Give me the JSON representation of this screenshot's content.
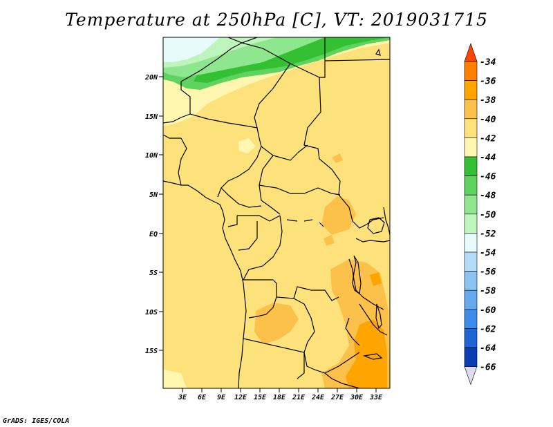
{
  "title": "Temperature at 250hPa [C], VT: 2019031715",
  "footer": "GrADS: IGES/COLA",
  "map": {
    "lat_labels": [
      "20N",
      "15N",
      "10N",
      "5N",
      "EQ",
      "5S",
      "10S",
      "15S"
    ],
    "lon_labels": [
      "3E",
      "6E",
      "9E",
      "12E",
      "15E",
      "18E",
      "21E",
      "24E",
      "27E",
      "30E",
      "33E"
    ]
  },
  "colorbar": {
    "labels": [
      "-34",
      "-36",
      "-38",
      "-40",
      "-42",
      "-44",
      "-46",
      "-48",
      "-50",
      "-52",
      "-54",
      "-56",
      "-58",
      "-60",
      "-62",
      "-64",
      "-66"
    ],
    "colors": [
      "#ff4500",
      "#ff7f00",
      "#ffa500",
      "#fbc14a",
      "#fde27c",
      "#fff7b0",
      "#33c033",
      "#5fd35f",
      "#8ee68e",
      "#bdf5bd",
      "#e8fbfb",
      "#b4dcf8",
      "#8cc3f3",
      "#64a8ee",
      "#3d8ce8",
      "#1f64d4",
      "#0a3cb4",
      "#07206e",
      "#dcdcf0"
    ]
  }
}
